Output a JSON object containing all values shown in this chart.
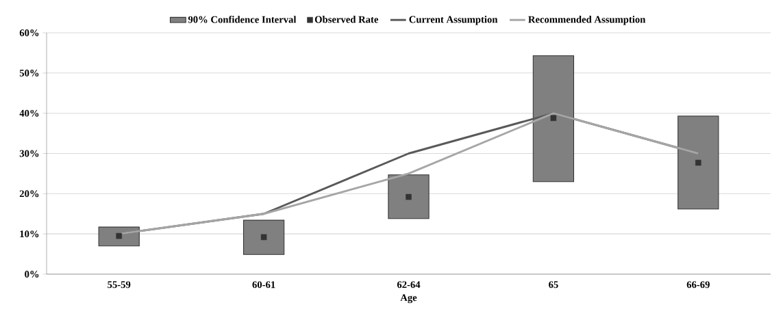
{
  "chart_data": {
    "type": "bar",
    "xlabel": "Age",
    "categories": [
      "55-59",
      "60-61",
      "62-64",
      "65",
      "66-69"
    ],
    "series": [
      {
        "name": "90% Confidence Interval",
        "type": "bar",
        "color": "#808080",
        "base": [
          7.0,
          4.9,
          13.8,
          23.0,
          16.2
        ],
        "values": [
          4.7,
          8.5,
          10.9,
          31.3,
          23.1
        ]
      },
      {
        "name": "Observed Rate",
        "type": "scatter",
        "color": "#333333",
        "marker": "square",
        "values": [
          9.5,
          9.2,
          19.2,
          38.8,
          27.7
        ]
      },
      {
        "name": "Current Assumption",
        "type": "line",
        "color": "#595959",
        "values": [
          10,
          15,
          30,
          40,
          30
        ]
      },
      {
        "name": "Recommended Assumption",
        "type": "line",
        "color": "#a6a6a6",
        "values": [
          10,
          15,
          25,
          40,
          30
        ]
      }
    ],
    "ylim": [
      0,
      60
    ],
    "yticks": [
      {
        "value": 0,
        "label": "0%"
      },
      {
        "value": 10,
        "label": "10%"
      },
      {
        "value": 20,
        "label": "20%"
      },
      {
        "value": 30,
        "label": "30%"
      },
      {
        "value": 40,
        "label": "40%"
      },
      {
        "value": 50,
        "label": "50%"
      },
      {
        "value": 60,
        "label": "60%"
      }
    ],
    "grid": "y",
    "legend": "top"
  }
}
